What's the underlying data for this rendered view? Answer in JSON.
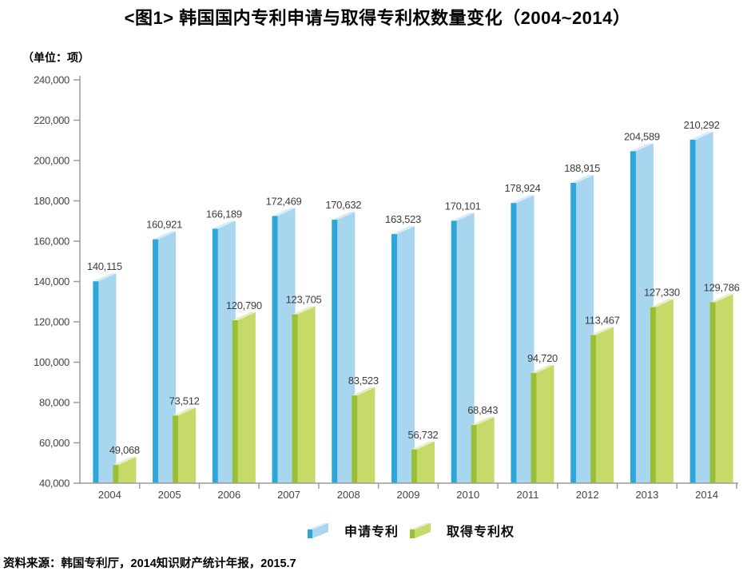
{
  "title": "<图1> 韩国国内专利申请与取得专利权数量变化（2004~2014）",
  "unit_label": "（单位：项）",
  "source": "资料来源：韩国专利厅，2014知识财产统计年报，2015.7",
  "colors": {
    "application": {
      "front": "#2da6da",
      "side": "#a9d6ef",
      "top": "#d9ecf8"
    },
    "grant": {
      "front": "#9abf35",
      "side": "#c6da69",
      "top": "#e7eec6"
    },
    "axis": "#9b9b9b",
    "tick_text": "#434343",
    "value_text": "#3d3d3d"
  },
  "chart_data": {
    "type": "bar",
    "title": "<图1> 韩国国内专利申请与取得专利权数量变化（2004~2014）",
    "unit": "（单位：项）",
    "categories": [
      "2004",
      "2005",
      "2006",
      "2007",
      "2008",
      "2009",
      "2010",
      "2011",
      "2012",
      "2013",
      "2014"
    ],
    "series": [
      {
        "name": "申请专利",
        "color": "#2da6da",
        "values": [
          140115,
          160921,
          166189,
          172469,
          170632,
          163523,
          170101,
          178924,
          188915,
          204589,
          210292
        ]
      },
      {
        "name": "取得专利权",
        "color": "#9abf35",
        "values": [
          49068,
          73512,
          120790,
          123705,
          83523,
          56732,
          68843,
          94720,
          113467,
          127330,
          129786
        ]
      }
    ],
    "ylim": [
      40000,
      240000
    ],
    "ytick_step": 20000,
    "ytick_labels": [
      "40,000",
      "60,000",
      "80,000",
      "100,000",
      "120,000",
      "140,000",
      "160,000",
      "180,000",
      "200,000",
      "220,000",
      "240,000"
    ],
    "grid": false,
    "value_labels": true,
    "legend_position": "bottom",
    "style": "pseudo-3d bars"
  }
}
